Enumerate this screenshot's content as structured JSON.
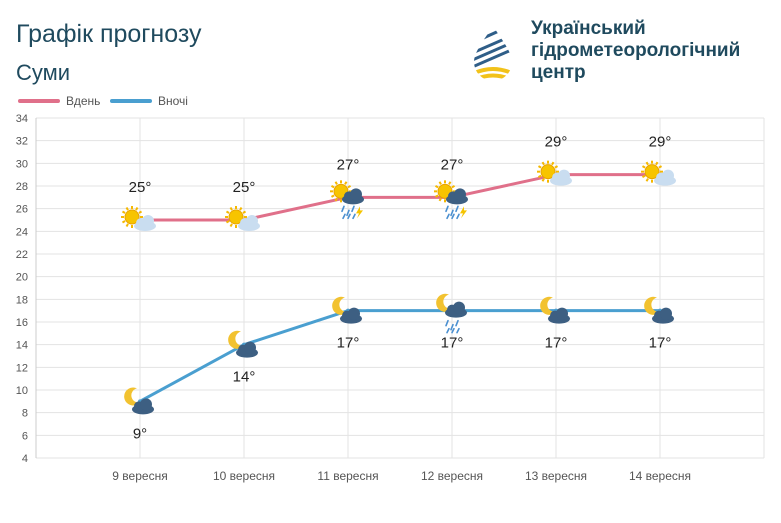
{
  "header": {
    "title": "Графік прогнозу",
    "city": "Суми",
    "org_line1": "Український",
    "org_line2": "гідрометеорологічний",
    "org_line3": "центр",
    "logo_icon": "water-drop-logo-icon"
  },
  "chart_data": {
    "type": "line",
    "title": "Графік прогнозу",
    "subtitle": "Суми",
    "categories": [
      "9 вересня",
      "10 вересня",
      "11 вересня",
      "12 вересня",
      "13 вересня",
      "14 вересня"
    ],
    "series": [
      {
        "name": "Вдень",
        "color": "#e0708a",
        "values": [
          25,
          25,
          27,
          27,
          29,
          29
        ],
        "labels": [
          "25°",
          "25°",
          "27°",
          "27°",
          "29°",
          "29°"
        ],
        "icons": [
          "sun-cloud-icon",
          "sun-cloud-icon",
          "sun-rain-thunder-icon",
          "sun-rain-thunder-icon",
          "sun-cloud-icon",
          "sun-cloud-icon"
        ]
      },
      {
        "name": "Вночі",
        "color": "#4a9fd0",
        "values": [
          9,
          14,
          17,
          17,
          17,
          17
        ],
        "labels": [
          "9°",
          "14°",
          "17°",
          "17°",
          "17°",
          "17°"
        ],
        "icons": [
          "moon-cloud-icon",
          "moon-cloud-icon",
          "moon-cloud-icon",
          "moon-rain-icon",
          "moon-cloud-icon",
          "moon-cloud-icon"
        ]
      }
    ],
    "ylim": [
      4,
      34
    ],
    "yticks": [
      4,
      6,
      8,
      10,
      12,
      14,
      16,
      18,
      20,
      22,
      24,
      26,
      28,
      30,
      32,
      34
    ],
    "xlabel": "",
    "ylabel": "",
    "grid": true,
    "legend": "top-left"
  }
}
